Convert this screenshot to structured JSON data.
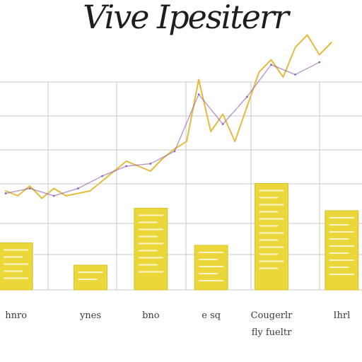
{
  "colors": {
    "background": "#ffffff",
    "grid": "#c9c9c9",
    "bar": "#ecd73a",
    "line_primary": "#e3bc3e",
    "line_secondary": "#8f5fa8"
  },
  "chart_data": {
    "type": "bar",
    "title": "Vive Ipesiterr",
    "xlabel": "",
    "ylabel": "",
    "grid": true,
    "ylim": [
      0,
      100
    ],
    "categories": [
      "hnro",
      "ynes",
      "bno",
      "e sq",
      "Cougerlr fly fueltr",
      "Ihrl"
    ],
    "bars": {
      "values": [
        19,
        10,
        33,
        18,
        43,
        32
      ]
    },
    "lines": [
      {
        "x": [
          0,
          0.2,
          0.4,
          0.6,
          0.8,
          1.0,
          1.2,
          1.4,
          1.6,
          1.8,
          2.0,
          2.2,
          2.4,
          2.6,
          2.8,
          3.0,
          3.2,
          3.4,
          3.6,
          3.8,
          4.0,
          4.2,
          4.4,
          4.6,
          4.8,
          5.0,
          5.2,
          5.4
        ],
        "values": [
          40,
          38,
          42,
          37,
          41,
          38,
          39,
          40,
          44,
          48,
          52,
          50,
          48,
          53,
          57,
          60,
          85,
          64,
          71,
          60,
          74,
          88,
          93,
          86,
          98,
          103,
          95,
          100
        ]
      },
      {
        "x": [
          0,
          0.4,
          0.8,
          1.2,
          1.6,
          2.0,
          2.4,
          2.8,
          3.2,
          3.6,
          4.0,
          4.4,
          4.8,
          5.2
        ],
        "values": [
          39,
          41,
          38,
          41,
          46,
          50,
          51,
          56,
          79,
          67,
          78,
          91,
          87,
          92
        ]
      }
    ]
  }
}
